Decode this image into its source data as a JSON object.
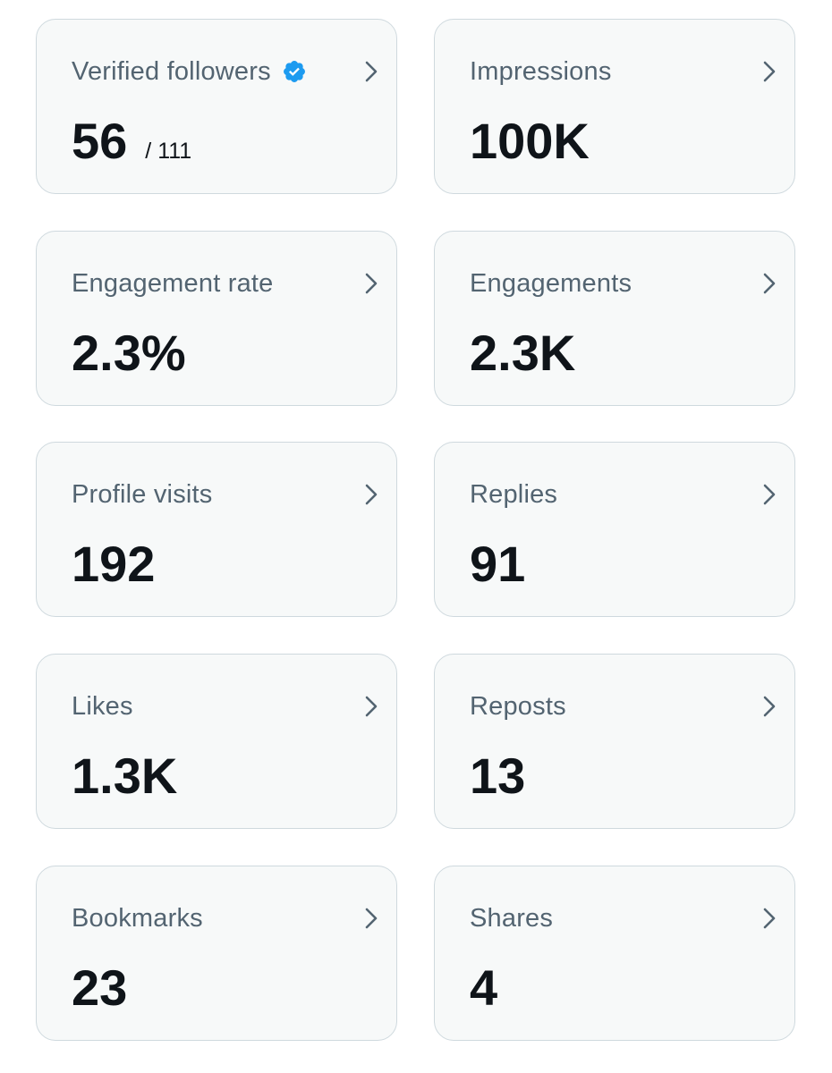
{
  "metrics": [
    {
      "label": "Verified followers",
      "value": "56",
      "sub": "/ 111",
      "verified": true
    },
    {
      "label": "Impressions",
      "value": "100K"
    },
    {
      "label": "Engagement rate",
      "value": "2.3%"
    },
    {
      "label": "Engagements",
      "value": "2.3K"
    },
    {
      "label": "Profile visits",
      "value": "192"
    },
    {
      "label": "Replies",
      "value": "91"
    },
    {
      "label": "Likes",
      "value": "1.3K"
    },
    {
      "label": "Reposts",
      "value": "13"
    },
    {
      "label": "Bookmarks",
      "value": "23"
    },
    {
      "label": "Shares",
      "value": "4"
    }
  ],
  "colors": {
    "card_background": "#f7f9f9",
    "card_border": "#cfd9de",
    "label": "#536471",
    "value": "#0f1419",
    "verified_badge": "#1d9bf0",
    "chevron": "#536471"
  },
  "icons": {
    "verified": "verified-badge-icon",
    "chevron": "chevron-right-icon"
  }
}
